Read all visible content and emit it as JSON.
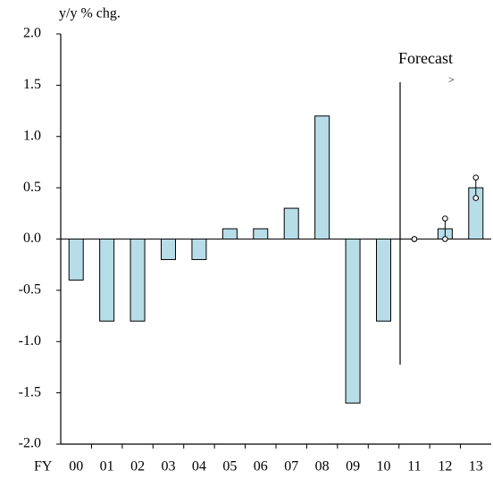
{
  "chart_data": {
    "type": "bar",
    "title": "y/y % chg.",
    "x_label": "FY",
    "categories": [
      "00",
      "01",
      "02",
      "03",
      "04",
      "05",
      "06",
      "07",
      "08",
      "09",
      "10",
      "11",
      "12",
      "13"
    ],
    "values": [
      -0.4,
      -0.8,
      -0.8,
      -0.2,
      -0.2,
      0.1,
      0.1,
      0.3,
      1.2,
      -1.6,
      -0.8,
      0,
      0.1,
      0.5
    ],
    "range_low": [
      null,
      null,
      null,
      null,
      null,
      null,
      null,
      null,
      null,
      null,
      null,
      0,
      0,
      0.4
    ],
    "range_high": [
      null,
      null,
      null,
      null,
      null,
      null,
      null,
      null,
      null,
      null,
      null,
      0,
      0.2,
      0.6
    ],
    "color": "#b7dde8",
    "annotations": [
      "Forecast",
      ">"
    ],
    "ylim": [
      -2.0,
      2.0
    ],
    "yticks": [
      {
        "value": -2.0,
        "label": "-2.0"
      },
      {
        "value": -1.5,
        "label": "-1.5"
      },
      {
        "value": -1.0,
        "label": "-1.0"
      },
      {
        "value": -0.5,
        "label": "-0.5"
      },
      {
        "value": 0.0,
        "label": "0.0"
      },
      {
        "value": 0.5,
        "label": "0.5"
      },
      {
        "value": 1.0,
        "label": "1.0"
      },
      {
        "value": 1.5,
        "label": "1.5"
      },
      {
        "value": 2.0,
        "label": "2.0"
      }
    ]
  }
}
